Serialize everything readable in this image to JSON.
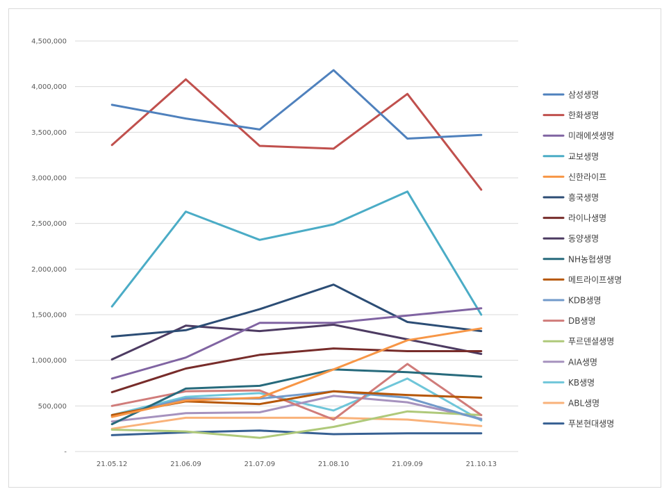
{
  "chart_data": {
    "type": "line",
    "title": "",
    "xlabel": "",
    "ylabel": "",
    "categories": [
      "21.05.12",
      "21.06.09",
      "21.07.09",
      "21.08.10",
      "21.09.09",
      "21.10.13"
    ],
    "ylim": [
      0,
      4500000
    ],
    "yticks": [
      {
        "value": 0,
        "label": "-"
      },
      {
        "value": 500000,
        "label": "500,000"
      },
      {
        "value": 1000000,
        "label": "1,000,000"
      },
      {
        "value": 1500000,
        "label": "1,500,000"
      },
      {
        "value": 2000000,
        "label": "2,000,000"
      },
      {
        "value": 2500000,
        "label": "2,500,000"
      },
      {
        "value": 3000000,
        "label": "3,000,000"
      },
      {
        "value": 3500000,
        "label": "3,500,000"
      },
      {
        "value": 4000000,
        "label": "4,000,000"
      },
      {
        "value": 4500000,
        "label": "4,500,000"
      }
    ],
    "grid": true,
    "legend_position": "right",
    "series": [
      {
        "name": "삼성생명",
        "color": "#4f81bd",
        "values": [
          3800000,
          3650000,
          3530000,
          4180000,
          3430000,
          3470000
        ]
      },
      {
        "name": "한화생명",
        "color": "#c0504d",
        "values": [
          3360000,
          4080000,
          3350000,
          3320000,
          3920000,
          2870000
        ]
      },
      {
        "name": "미래에셋생명",
        "color": "#8064a2",
        "values": [
          800000,
          1030000,
          1410000,
          1410000,
          1490000,
          1570000
        ]
      },
      {
        "name": "교보생명",
        "color": "#4bacc6",
        "values": [
          1590000,
          2630000,
          2320000,
          2490000,
          2850000,
          1500000
        ]
      },
      {
        "name": "신한라이프",
        "color": "#f79646",
        "values": [
          380000,
          560000,
          590000,
          900000,
          1220000,
          1350000
        ]
      },
      {
        "name": "흥국생명",
        "color": "#2c4d75",
        "values": [
          1260000,
          1330000,
          1560000,
          1830000,
          1420000,
          1320000
        ]
      },
      {
        "name": "라이나생명",
        "color": "#772c2a",
        "values": [
          650000,
          910000,
          1060000,
          1130000,
          1100000,
          1100000
        ]
      },
      {
        "name": "동양생명",
        "color": "#4d3b62",
        "values": [
          1010000,
          1380000,
          1320000,
          1390000,
          1230000,
          1070000
        ]
      },
      {
        "name": "NH농협생명",
        "color": "#276a7c",
        "values": [
          300000,
          690000,
          720000,
          900000,
          870000,
          820000
        ]
      },
      {
        "name": "메트라이프생명",
        "color": "#b65708",
        "values": [
          400000,
          550000,
          520000,
          660000,
          620000,
          590000
        ]
      },
      {
        "name": "KDB생명",
        "color": "#729aca",
        "values": [
          390000,
          580000,
          580000,
          660000,
          590000,
          350000
        ]
      },
      {
        "name": "DB생명",
        "color": "#d07c7a",
        "values": [
          500000,
          660000,
          670000,
          350000,
          960000,
          400000
        ]
      },
      {
        "name": "푸르덴셜생명",
        "color": "#afc97a",
        "values": [
          240000,
          220000,
          150000,
          270000,
          440000,
          400000
        ]
      },
      {
        "name": "AIA생명",
        "color": "#a692be",
        "values": [
          330000,
          420000,
          430000,
          610000,
          540000,
          360000
        ]
      },
      {
        "name": "KB생명",
        "color": "#6fc6d9",
        "values": [
          400000,
          600000,
          640000,
          450000,
          800000,
          340000
        ]
      },
      {
        "name": "ABL생명",
        "color": "#f9b27a",
        "values": [
          250000,
          370000,
          370000,
          370000,
          350000,
          280000
        ]
      },
      {
        "name": "푸본현대생명",
        "color": "#376092",
        "values": [
          180000,
          210000,
          230000,
          190000,
          200000,
          200000
        ]
      }
    ]
  }
}
